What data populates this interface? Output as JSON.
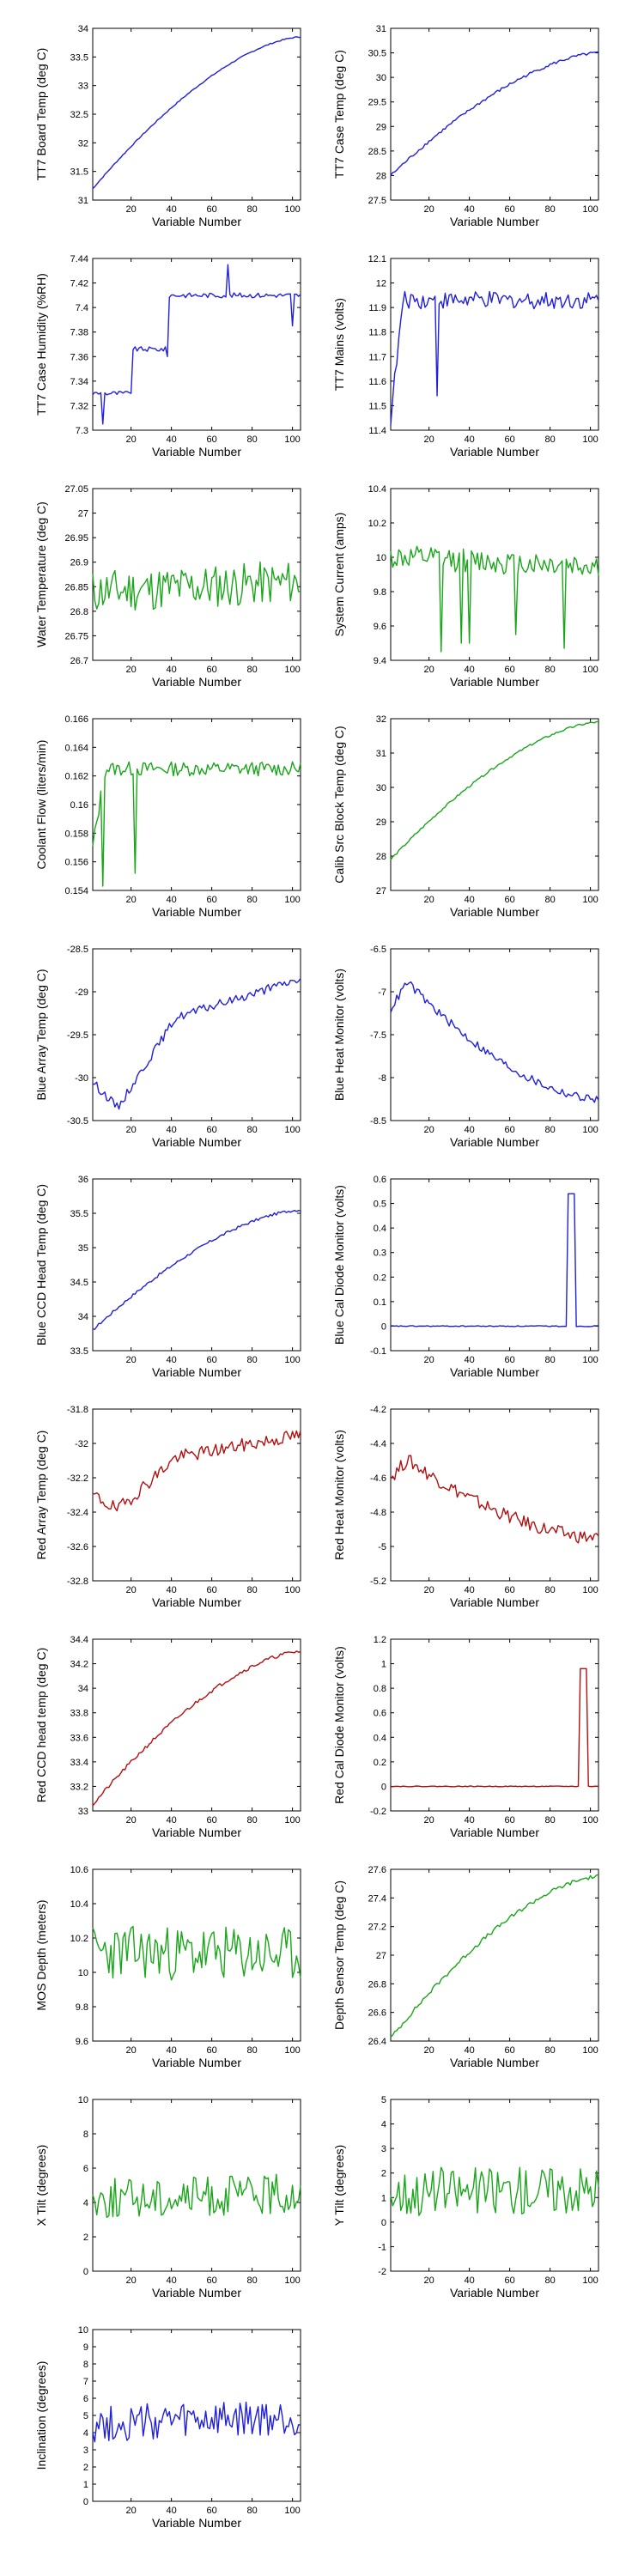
{
  "figure": {
    "xlabel": "Variable Number"
  },
  "colors": {
    "blue": "#1f1fdc",
    "green": "#19a619",
    "red": "#b20f0f"
  },
  "chart_data": [
    {
      "type": "line",
      "ylabel": "TT7 Board Temp (deg C)",
      "xlim": [
        1,
        104
      ],
      "ylim": [
        31,
        34
      ],
      "xticks": [
        20,
        40,
        60,
        80,
        100
      ],
      "yticks": [
        31,
        31.5,
        32,
        32.5,
        33,
        33.5,
        34
      ],
      "color": "blue",
      "pattern": "rise",
      "start": 31.2,
      "end": 33.85,
      "noise": 0.01
    },
    {
      "type": "line",
      "ylabel": "TT7 Case Temp (deg C)",
      "xlim": [
        1,
        104
      ],
      "ylim": [
        27.5,
        31
      ],
      "xticks": [
        20,
        40,
        60,
        80,
        100
      ],
      "yticks": [
        27.5,
        28,
        28.5,
        29,
        29.5,
        30,
        30.5,
        31
      ],
      "color": "blue",
      "pattern": "rise",
      "start": 28.0,
      "end": 30.5,
      "noise": 0.03
    },
    {
      "type": "line",
      "ylabel": "TT7 Case Humidity (%RH)",
      "xlim": [
        1,
        104
      ],
      "ylim": [
        7.3,
        7.44
      ],
      "xticks": [
        20,
        40,
        60,
        80,
        100
      ],
      "yticks": [
        7.3,
        7.32,
        7.34,
        7.36,
        7.38,
        7.4,
        7.42,
        7.44
      ],
      "color": "blue",
      "pattern": "step",
      "start": 7.33,
      "end": 7.41,
      "noise": 0.002,
      "spikes": [
        [
          6,
          7.305
        ],
        [
          20,
          7.33
        ],
        [
          38,
          7.36
        ],
        [
          68,
          7.435
        ],
        [
          100,
          7.385
        ]
      ]
    },
    {
      "type": "line",
      "ylabel": "TT7 Mains  (volts)",
      "xlim": [
        1,
        104
      ],
      "ylim": [
        11.4,
        12.1
      ],
      "xticks": [
        20,
        40,
        60,
        80,
        100
      ],
      "yticks": [
        11.4,
        11.5,
        11.6,
        11.7,
        11.8,
        11.9,
        12,
        12.1
      ],
      "color": "blue",
      "pattern": "jumpflat",
      "start": 11.45,
      "end": 11.93,
      "noise": 0.035,
      "spikes": [
        [
          24,
          11.54
        ],
        [
          12,
          11.95
        ]
      ]
    },
    {
      "type": "line",
      "ylabel": "Water Temperature (deg C)",
      "xlim": [
        1,
        104
      ],
      "ylim": [
        26.7,
        27.05
      ],
      "xticks": [
        20,
        40,
        60,
        80,
        100
      ],
      "yticks": [
        26.7,
        26.75,
        26.8,
        26.85,
        26.9,
        26.95,
        27,
        27.05
      ],
      "color": "green",
      "pattern": "noise",
      "start": 26.84,
      "end": 26.86,
      "noise": 0.045
    },
    {
      "type": "line",
      "ylabel": "System Current (amps)",
      "xlim": [
        1,
        104
      ],
      "ylim": [
        9.4,
        10.4
      ],
      "xticks": [
        20,
        40,
        60,
        80,
        100
      ],
      "yticks": [
        9.4,
        9.6,
        9.8,
        10,
        10.2,
        10.4
      ],
      "color": "green",
      "pattern": "noise",
      "start": 10.0,
      "end": 9.95,
      "noise": 0.07,
      "spikes": [
        [
          26,
          9.45
        ],
        [
          36,
          9.5
        ],
        [
          40,
          9.5
        ],
        [
          63,
          9.55
        ],
        [
          87,
          9.47
        ]
      ]
    },
    {
      "type": "line",
      "ylabel": "Coolant Flow (liters/min)",
      "xlim": [
        1,
        104
      ],
      "ylim": [
        0.154,
        0.166
      ],
      "xticks": [
        20,
        40,
        60,
        80,
        100
      ],
      "yticks": [
        0.154,
        0.156,
        0.158,
        0.16,
        0.162,
        0.164,
        0.166
      ],
      "color": "green",
      "pattern": "jumpflat",
      "start": 0.157,
      "end": 0.1625,
      "noise": 0.0005,
      "spikes": [
        [
          22,
          0.1552
        ],
        [
          6,
          0.1543
        ]
      ]
    },
    {
      "type": "line",
      "ylabel": "Calib Src Block Temp (deg C)",
      "xlim": [
        1,
        104
      ],
      "ylim": [
        27,
        32
      ],
      "xticks": [
        20,
        40,
        60,
        80,
        100
      ],
      "yticks": [
        27,
        28,
        29,
        30,
        31,
        32
      ],
      "color": "green",
      "pattern": "rise",
      "start": 27.9,
      "end": 31.9,
      "noise": 0.03
    },
    {
      "type": "line",
      "ylabel": "Blue Array Temp (deg C)",
      "xlim": [
        1,
        104
      ],
      "ylim": [
        -30.5,
        -28.5
      ],
      "xticks": [
        20,
        40,
        60,
        80,
        100
      ],
      "yticks": [
        -30.5,
        -30,
        -29.5,
        -29,
        -28.5
      ],
      "color": "blue",
      "pattern": "dipRise",
      "start": -30.05,
      "end": -28.85,
      "noise": 0.05
    },
    {
      "type": "line",
      "ylabel": "Blue Heat Monitor (volts)",
      "xlim": [
        1,
        104
      ],
      "ylim": [
        -8.5,
        -6.5
      ],
      "xticks": [
        20,
        40,
        60,
        80,
        100
      ],
      "yticks": [
        -8.5,
        -8,
        -7.5,
        -7,
        -6.5
      ],
      "color": "blue",
      "pattern": "peakFall",
      "start": -7.2,
      "end": -8.25,
      "noise": 0.05
    },
    {
      "type": "line",
      "ylabel": "Blue CCD Head Temp (deg C)",
      "xlim": [
        1,
        104
      ],
      "ylim": [
        33.5,
        36
      ],
      "xticks": [
        20,
        40,
        60,
        80,
        100
      ],
      "yticks": [
        33.5,
        34,
        34.5,
        35,
        35.5,
        36
      ],
      "color": "blue",
      "pattern": "rise",
      "start": 33.8,
      "end": 35.55,
      "noise": 0.02
    },
    {
      "type": "line",
      "ylabel": "Blue Cal Diode Monitor (volts)",
      "xlim": [
        1,
        104
      ],
      "ylim": [
        -0.1,
        0.6
      ],
      "xticks": [
        20,
        40,
        60,
        80,
        100
      ],
      "yticks": [
        -0.1,
        0,
        0.1,
        0.2,
        0.3,
        0.4,
        0.5,
        0.6
      ],
      "color": "blue",
      "pattern": "pulse",
      "start": 0,
      "end": 0,
      "noise": 0.002,
      "pulse": [
        89,
        92,
        0.54
      ]
    },
    {
      "type": "line",
      "ylabel": "Red Array Temp (deg C)",
      "xlim": [
        1,
        104
      ],
      "ylim": [
        -32.8,
        -31.8
      ],
      "xticks": [
        20,
        40,
        60,
        80,
        100
      ],
      "yticks": [
        -32.8,
        -32.6,
        -32.4,
        -32.2,
        -32,
        -31.8
      ],
      "color": "red",
      "pattern": "dipRise",
      "start": -32.3,
      "end": -31.95,
      "noise": 0.04
    },
    {
      "type": "line",
      "ylabel": "Red Heat Monitor (volts)",
      "xlim": [
        1,
        104
      ],
      "ylim": [
        -5.2,
        -4.2
      ],
      "xticks": [
        20,
        40,
        60,
        80,
        100
      ],
      "yticks": [
        -5.2,
        -5,
        -4.8,
        -4.6,
        -4.4,
        -4.2
      ],
      "color": "red",
      "pattern": "peakFall",
      "start": -4.6,
      "end": -4.95,
      "noise": 0.04
    },
    {
      "type": "line",
      "ylabel": "Red CCD head temp (deg C)",
      "xlim": [
        1,
        104
      ],
      "ylim": [
        33,
        34.4
      ],
      "xticks": [
        20,
        40,
        60,
        80,
        100
      ],
      "yticks": [
        33,
        33.2,
        33.4,
        33.6,
        33.8,
        34,
        34.2,
        34.4
      ],
      "color": "red",
      "pattern": "rise",
      "start": 33.05,
      "end": 34.3,
      "noise": 0.015
    },
    {
      "type": "line",
      "ylabel": "Red Cal Diode Monitor (volts)",
      "xlim": [
        1,
        104
      ],
      "ylim": [
        -0.2,
        1.2
      ],
      "xticks": [
        20,
        40,
        60,
        80,
        100
      ],
      "yticks": [
        -0.2,
        0,
        0.2,
        0.4,
        0.6,
        0.8,
        1,
        1.2
      ],
      "color": "red",
      "pattern": "pulse",
      "start": 0,
      "end": 0,
      "noise": 0.003,
      "pulse": [
        95,
        98,
        0.96
      ]
    },
    {
      "type": "line",
      "ylabel": "MOS Depth  (meters)",
      "xlim": [
        1,
        104
      ],
      "ylim": [
        9.6,
        10.6
      ],
      "xticks": [
        20,
        40,
        60,
        80,
        100
      ],
      "yticks": [
        9.6,
        9.8,
        10,
        10.2,
        10.4,
        10.6
      ],
      "color": "green",
      "pattern": "noise",
      "start": 10.12,
      "end": 10.1,
      "noise": 0.16
    },
    {
      "type": "line",
      "ylabel": "Depth Sensor Temp (deg C)",
      "xlim": [
        1,
        104
      ],
      "ylim": [
        26.4,
        27.6
      ],
      "xticks": [
        20,
        40,
        60,
        80,
        100
      ],
      "yticks": [
        26.4,
        26.6,
        26.8,
        27,
        27.2,
        27.4,
        27.6
      ],
      "color": "green",
      "pattern": "rise",
      "start": 26.42,
      "end": 27.55,
      "noise": 0.015
    },
    {
      "type": "line",
      "ylabel": "X Tilt  (degrees)",
      "xlim": [
        1,
        104
      ],
      "ylim": [
        0,
        10
      ],
      "xticks": [
        20,
        40,
        60,
        80,
        100
      ],
      "yticks": [
        0,
        2,
        4,
        6,
        8,
        10
      ],
      "color": "green",
      "pattern": "noise",
      "start": 4.2,
      "end": 4.5,
      "noise": 1.2
    },
    {
      "type": "line",
      "ylabel": "Y Tilt  (degrees)",
      "xlim": [
        1,
        104
      ],
      "ylim": [
        -2,
        5
      ],
      "xticks": [
        20,
        40,
        60,
        80,
        100
      ],
      "yticks": [
        -2,
        -1,
        0,
        1,
        2,
        3,
        4,
        5
      ],
      "color": "green",
      "pattern": "noise",
      "start": 1.2,
      "end": 1.4,
      "noise": 1.0
    },
    {
      "type": "line",
      "ylabel": "Inclination  (degrees)",
      "xlim": [
        1,
        104
      ],
      "ylim": [
        0,
        10
      ],
      "xticks": [
        20,
        40,
        60,
        80,
        100
      ],
      "yticks": [
        0,
        1,
        2,
        3,
        4,
        5,
        6,
        7,
        8,
        9,
        10
      ],
      "color": "blue",
      "pattern": "noise",
      "start": 4.5,
      "end": 4.8,
      "noise": 1.1
    }
  ]
}
